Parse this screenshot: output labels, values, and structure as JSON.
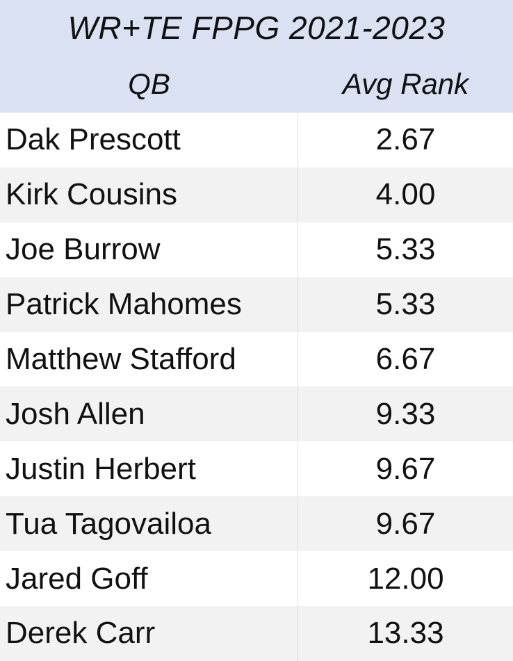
{
  "table": {
    "title": "WR+TE FPPG 2021-2023",
    "headers": {
      "qb": "QB",
      "avg_rank": "Avg Rank"
    },
    "rows": [
      {
        "qb": "Dak Prescott",
        "avg_rank": "2.67"
      },
      {
        "qb": "Kirk Cousins",
        "avg_rank": "4.00"
      },
      {
        "qb": "Joe Burrow",
        "avg_rank": "5.33"
      },
      {
        "qb": "Patrick Mahomes",
        "avg_rank": "5.33"
      },
      {
        "qb": "Matthew Stafford",
        "avg_rank": "6.67"
      },
      {
        "qb": "Josh Allen",
        "avg_rank": "9.33"
      },
      {
        "qb": "Justin Herbert",
        "avg_rank": "9.67"
      },
      {
        "qb": "Tua Tagovailoa",
        "avg_rank": "9.67"
      },
      {
        "qb": "Jared Goff",
        "avg_rank": "12.00"
      },
      {
        "qb": "Derek Carr",
        "avg_rank": "13.33"
      }
    ]
  },
  "colors": {
    "header_bg": "#d9e1f2",
    "row_alt_bg": "#f2f2f2"
  }
}
